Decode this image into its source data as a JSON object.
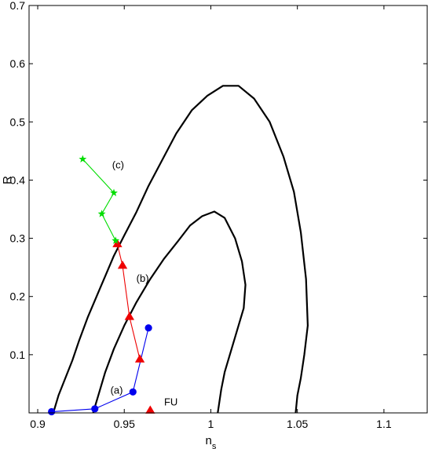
{
  "chart_data": {
    "type": "scatter",
    "xlabel": "n",
    "xlabel_sub": "s",
    "ylabel": "R",
    "xlim": [
      0.895,
      1.125
    ],
    "ylim": [
      0,
      0.7
    ],
    "xticks": [
      0.9,
      0.95,
      1,
      1.05,
      1.1
    ],
    "xtick_labels": [
      "0.9",
      "0.95",
      "1",
      "1.05",
      "1.1"
    ],
    "yticks": [
      0.1,
      0.2,
      0.3,
      0.4,
      0.5,
      0.6,
      0.7
    ],
    "ytick_labels": [
      "0.1",
      "0.2",
      "0.3",
      "0.4",
      "0.5",
      "0.6",
      "0.7"
    ],
    "grid": false,
    "contours": [
      {
        "level": "outer",
        "color": "#000000",
        "x": [
          0.909,
          0.912,
          0.916,
          0.92,
          0.924,
          0.929,
          0.934,
          0.939,
          0.944,
          0.95,
          0.957,
          0.964,
          0.972,
          0.98,
          0.989,
          0.998,
          1.007,
          1.016,
          1.025,
          1.034,
          1.042,
          1.048,
          1.052,
          1.055,
          1.056,
          1.054,
          1.052,
          1.05,
          1.049
        ],
        "y": [
          0.0,
          0.03,
          0.06,
          0.09,
          0.125,
          0.165,
          0.2,
          0.235,
          0.27,
          0.305,
          0.345,
          0.39,
          0.435,
          0.48,
          0.52,
          0.545,
          0.562,
          0.562,
          0.54,
          0.5,
          0.44,
          0.38,
          0.31,
          0.23,
          0.15,
          0.1,
          0.06,
          0.03,
          0.0
        ]
      },
      {
        "level": "inner",
        "color": "#000000",
        "x": [
          0.932,
          0.935,
          0.939,
          0.944,
          0.95,
          0.957,
          0.965,
          0.973,
          0.981,
          0.988,
          0.995,
          1.002,
          1.008,
          1.014,
          1.018,
          1.02,
          1.019,
          1.015,
          1.011,
          1.008,
          1.006,
          1.005,
          1.004
        ],
        "y": [
          0.0,
          0.03,
          0.07,
          0.11,
          0.15,
          0.19,
          0.23,
          0.265,
          0.295,
          0.322,
          0.338,
          0.346,
          0.335,
          0.3,
          0.26,
          0.22,
          0.18,
          0.14,
          0.1,
          0.07,
          0.04,
          0.02,
          0.0
        ]
      }
    ],
    "series": [
      {
        "label": "(a)",
        "color": "#0000ee",
        "marker": "circle",
        "x": [
          0.908,
          0.933,
          0.955,
          0.964
        ],
        "y": [
          0.002,
          0.007,
          0.036,
          0.146
        ]
      },
      {
        "label": "(b)",
        "color": "#ee0000",
        "marker": "triangle",
        "x": [
          0.946,
          0.949,
          0.953,
          0.959
        ],
        "y": [
          0.29,
          0.253,
          0.165,
          0.092
        ]
      },
      {
        "label": "(c)",
        "color": "#00dd00",
        "marker": "star",
        "x": [
          0.926,
          0.944,
          0.937,
          0.945
        ],
        "y": [
          0.436,
          0.378,
          0.342,
          0.296
        ]
      }
    ],
    "fu_point": {
      "label": "FU",
      "color": "#ee0000",
      "marker": "triangle",
      "x": 0.965,
      "y": 0.004
    },
    "annotations": [
      {
        "text": "(a)",
        "x": 0.942,
        "y": 0.033
      },
      {
        "text": "(b)",
        "x": 0.957,
        "y": 0.225
      },
      {
        "text": "(c)",
        "x": 0.943,
        "y": 0.42
      },
      {
        "text": "FU",
        "x": 0.973,
        "y": 0.013
      }
    ]
  }
}
